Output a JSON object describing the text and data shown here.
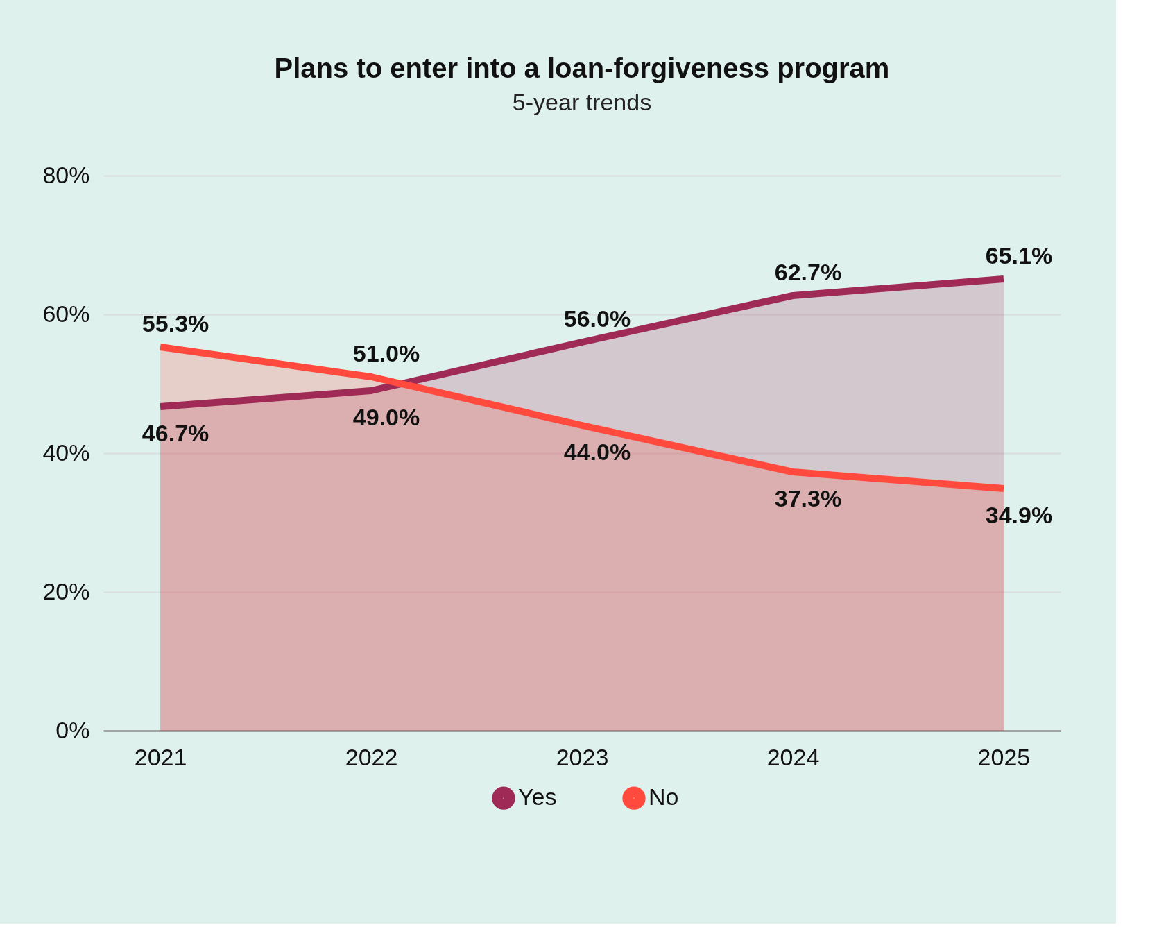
{
  "chart_data": {
    "type": "area",
    "title": "Plans to enter into a loan-forgiveness program",
    "subtitle": "5-year trends",
    "categories": [
      "2021",
      "2022",
      "2023",
      "2024",
      "2025"
    ],
    "series": [
      {
        "name": "Yes",
        "color": "#9e2a55",
        "values": [
          46.7,
          49.0,
          56.0,
          62.7,
          65.1
        ],
        "value_labels": [
          "46.7%",
          "49.0%",
          "56.0%",
          "62.7%",
          "65.1%"
        ]
      },
      {
        "name": "No",
        "color": "#ff4a3d",
        "values": [
          55.3,
          51.0,
          44.0,
          37.3,
          34.9
        ],
        "value_labels": [
          "55.3%",
          "51.0%",
          "44.0%",
          "37.3%",
          "34.9%"
        ]
      }
    ],
    "ylim": [
      0,
      80
    ],
    "yticks": [
      {
        "value": 0,
        "label": "0%"
      },
      {
        "value": 20,
        "label": "20%"
      },
      {
        "value": 40,
        "label": "40%"
      },
      {
        "value": 60,
        "label": "60%"
      },
      {
        "value": 80,
        "label": "80%"
      }
    ],
    "grid": "y",
    "legend": "bottom"
  }
}
